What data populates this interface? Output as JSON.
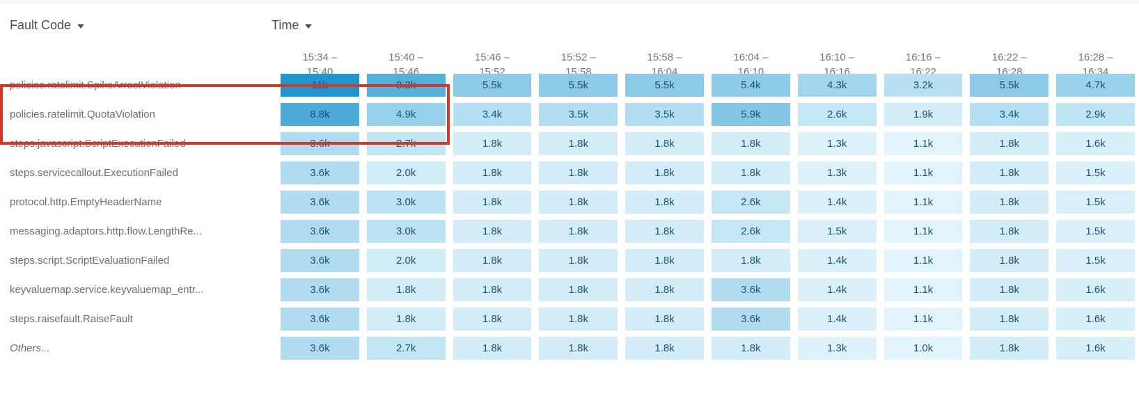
{
  "controls": {
    "fault_code_label": "Fault Code",
    "time_label": "Time"
  },
  "highlight": {
    "border_color": "#d0392b"
  },
  "heatmap_style": {
    "value_min_k": 1.0,
    "value_max_k": 11,
    "color_low": "#e3f5fc",
    "color_high": "#2196ce",
    "cell_text_color": "#1d5273"
  },
  "chart_data": {
    "type": "heatmap",
    "x_axis_label": "Time",
    "y_axis_label": "Fault Code",
    "value_unit": "k",
    "columns": [
      "15:34 – 15:40",
      "15:40 – 15:46",
      "15:46 – 15:52",
      "15:52 – 15:58",
      "15:58 – 16:04",
      "16:04 – 16:10",
      "16:10 – 16:16",
      "16:16 – 16:22",
      "16:22 – 16:28",
      "16:28 – 16:34"
    ],
    "rows": [
      {
        "label": "policies.ratelimit.SpikeArrestViolation",
        "italic": false,
        "values_k": [
          11,
          8.3,
          5.5,
          5.5,
          5.5,
          5.4,
          4.3,
          3.2,
          5.5,
          4.7
        ]
      },
      {
        "label": "policies.ratelimit.QuotaViolation",
        "italic": false,
        "values_k": [
          8.8,
          4.9,
          3.4,
          3.5,
          3.5,
          5.9,
          2.6,
          1.9,
          3.4,
          2.9
        ]
      },
      {
        "label": "steps.javascript.ScriptExecutionFailed",
        "italic": false,
        "values_k": [
          3.6,
          2.7,
          1.8,
          1.8,
          1.8,
          1.8,
          1.3,
          1.1,
          1.8,
          1.6
        ]
      },
      {
        "label": "steps.servicecallout.ExecutionFailed",
        "italic": false,
        "values_k": [
          3.6,
          2.0,
          1.8,
          1.8,
          1.8,
          1.8,
          1.3,
          1.1,
          1.8,
          1.5
        ]
      },
      {
        "label": "protocol.http.EmptyHeaderName",
        "italic": false,
        "values_k": [
          3.6,
          3.0,
          1.8,
          1.8,
          1.8,
          2.6,
          1.4,
          1.1,
          1.8,
          1.5
        ]
      },
      {
        "label": "messaging.adaptors.http.flow.LengthRe...",
        "italic": false,
        "values_k": [
          3.6,
          3.0,
          1.8,
          1.8,
          1.8,
          2.6,
          1.5,
          1.1,
          1.8,
          1.5
        ]
      },
      {
        "label": "steps.script.ScriptEvaluationFailed",
        "italic": false,
        "values_k": [
          3.6,
          2.0,
          1.8,
          1.8,
          1.8,
          1.8,
          1.4,
          1.1,
          1.8,
          1.5
        ]
      },
      {
        "label": "keyvaluemap.service.keyvaluemap_entr...",
        "italic": false,
        "values_k": [
          3.6,
          1.8,
          1.8,
          1.8,
          1.8,
          3.6,
          1.4,
          1.1,
          1.8,
          1.6
        ]
      },
      {
        "label": "steps.raisefault.RaiseFault",
        "italic": false,
        "values_k": [
          3.6,
          1.8,
          1.8,
          1.8,
          1.8,
          3.6,
          1.4,
          1.1,
          1.8,
          1.6
        ]
      },
      {
        "label": "Others...",
        "italic": true,
        "values_k": [
          3.6,
          2.7,
          1.8,
          1.8,
          1.8,
          1.8,
          1.3,
          1.0,
          1.8,
          1.6
        ]
      }
    ]
  }
}
